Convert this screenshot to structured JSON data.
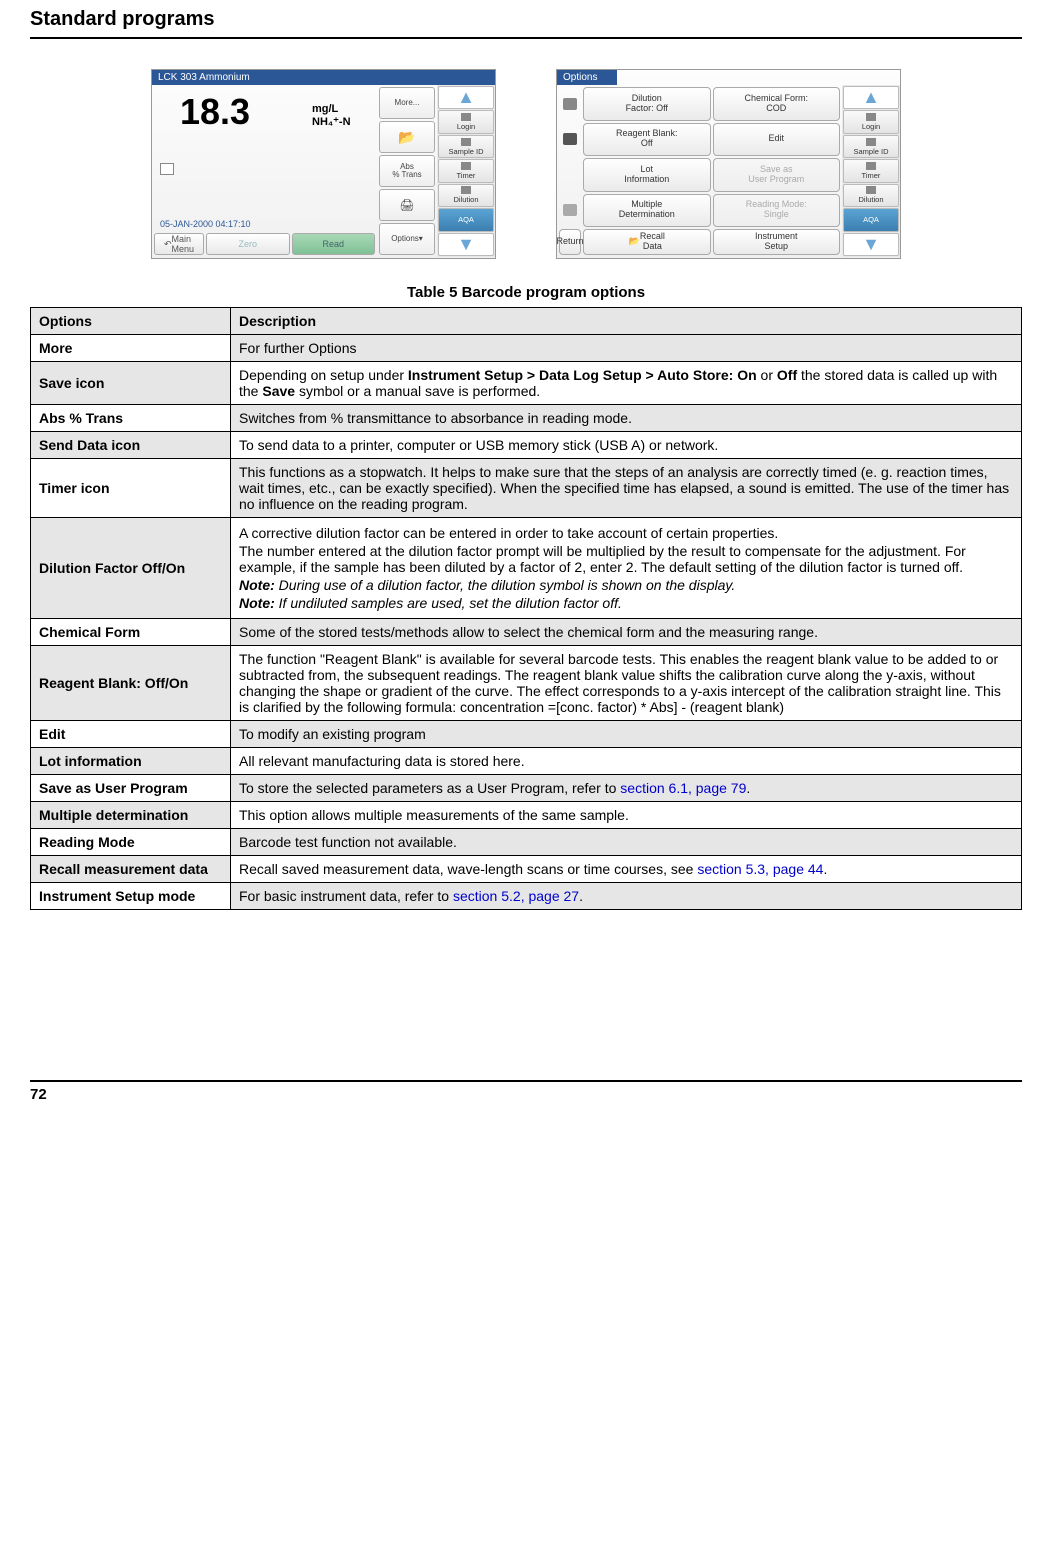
{
  "header": {
    "title": "Standard programs"
  },
  "footer": {
    "page": "72"
  },
  "screenshot1": {
    "titlebar": "LCK 303 Ammonium",
    "reading": "18.3",
    "unit1": "mg/L",
    "unit2": "NH₄⁺-N",
    "timestamp": "05-JAN-2000  04:17:10",
    "col": {
      "more": "More...",
      "save": "⬆",
      "abs": "Abs\n% Trans",
      "send": "⬆",
      "options": "Options"
    },
    "bottom": {
      "main": "Main\nMenu",
      "zero": "Zero",
      "read": "Read"
    },
    "right": {
      "login": "Login",
      "sample": "Sample ID",
      "timer": "Timer",
      "dilution": "Dilution",
      "aqa": "AQA"
    }
  },
  "screenshot2": {
    "titlebar": "Options",
    "cells": {
      "dilution": "Dilution\nFactor: Off",
      "chem": "Chemical Form:\nCOD",
      "reagent": "Reagent Blank:\nOff",
      "edit": "Edit",
      "lot": "Lot\nInformation",
      "saveuser": "Save as\nUser Program",
      "multi": "Multiple\nDetermination",
      "readmode": "Reading Mode:\nSingle",
      "return": "Return",
      "recall": "Recall\nData",
      "setup": "Instrument\nSetup"
    },
    "right": {
      "login": "Login",
      "sample": "Sample ID",
      "timer": "Timer",
      "dilution": "Dilution",
      "aqa": "AQA"
    }
  },
  "table": {
    "caption": "Table 5  Barcode program options",
    "headers": {
      "options": "Options",
      "description": "Description"
    },
    "rows": [
      {
        "opt": "More",
        "desc": "For further Options"
      },
      {
        "opt": "Save icon",
        "desc_parts": [
          "Depending on setup under ",
          "Instrument Setup > Data Log Setup > Auto Store: On",
          " or ",
          "Off",
          " the stored data is called up with the ",
          "Save",
          " symbol or a manual save is performed."
        ]
      },
      {
        "opt": "Abs % Trans",
        "desc": "Switches from % transmittance to absorbance in reading mode."
      },
      {
        "opt": "Send Data icon",
        "desc": "To send data to a printer, computer or USB memory stick (USB A) or network."
      },
      {
        "opt": "Timer icon",
        "desc": "This functions as a stopwatch. It helps to make sure that the steps of an analysis are correctly timed (e. g. reaction times, wait times, etc., can be exactly specified). When the specified time has elapsed, a sound is emitted. The use of the timer has no influence on the reading program."
      },
      {
        "opt": "Dilution Factor Off/On",
        "p1": "A corrective dilution factor can be entered in order to take account of certain properties.",
        "p2": "The number entered at the dilution factor prompt will be multiplied by the result to compensate for the adjustment. For example, if the sample has been diluted by a factor of 2, enter 2. The default setting of the dilution factor is turned off.",
        "n1_lbl": "Note:",
        "n1": " During use of a dilution factor, the dilution symbol is shown on the display.",
        "n2_lbl": "Note:",
        "n2": " If undiluted samples are used, set the dilution factor off."
      },
      {
        "opt": "Chemical Form",
        "desc": "Some of the stored tests/methods allow to select the chemical form and the measuring range."
      },
      {
        "opt": "Reagent Blank: Off/On",
        "desc": "The function \"Reagent Blank\" is available for several barcode tests. This enables the reagent blank value to be added to or subtracted from, the subsequent readings. The reagent blank value shifts the calibration curve along the y-axis, without changing the shape or gradient of the curve. The effect corresponds to a y-axis intercept of the calibration straight line. This is clarified by the following formula: concentration =[conc. factor) * Abs] - (reagent blank)"
      },
      {
        "opt": "Edit",
        "desc": "To modify an existing program"
      },
      {
        "opt": "Lot information",
        "desc": "All relevant manufacturing data is stored here."
      },
      {
        "opt": "Save as User Program",
        "pre": "To store the selected parameters as a User Program, refer to ",
        "link": "section 6.1, page 79",
        "post": "."
      },
      {
        "opt": "Multiple determination",
        "desc": "This option allows multiple measurements of the same sample."
      },
      {
        "opt": "Reading Mode",
        "desc": "Barcode test function not available."
      },
      {
        "opt": "Recall measurement data",
        "pre": "Recall saved measurement data, wave-length scans or time courses, see ",
        "link": "section 5.3, page 44",
        "post": "."
      },
      {
        "opt": "Instrument Setup mode",
        "pre": "For basic instrument data, refer to ",
        "link": "section 5.2, page 27",
        "post": "."
      }
    ]
  }
}
